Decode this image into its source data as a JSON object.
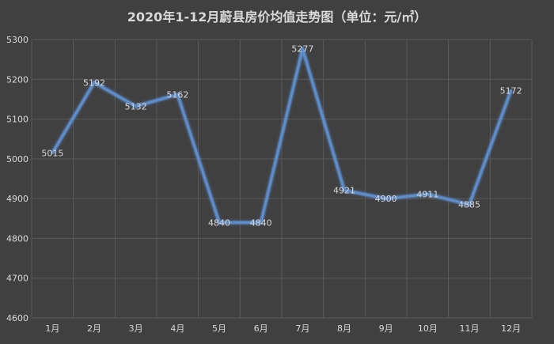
{
  "chart_data": {
    "type": "line",
    "title": "2020年1-12月蔚县房价均值走势图（单位：元/㎡）",
    "xlabel": "",
    "ylabel": "",
    "categories": [
      "1月",
      "2月",
      "3月",
      "4月",
      "5月",
      "6月",
      "7月",
      "8月",
      "9月",
      "10月",
      "11月",
      "12月"
    ],
    "series": [
      {
        "name": "",
        "values": [
          5015,
          5192,
          5132,
          5162,
          4840,
          4840,
          5277,
          4921,
          4900,
          4911,
          4885,
          5172
        ]
      }
    ],
    "ylim": [
      4600,
      5300
    ],
    "yticks": [
      4600,
      4700,
      4800,
      4900,
      5000,
      5100,
      5200,
      5300
    ],
    "grid": true,
    "legend": "none",
    "colors": {
      "background": "#404040",
      "line": "#5b8fd0",
      "glow": "#7fb0ff",
      "grid": "#5a5a5a",
      "text": "#d9d9d9"
    }
  }
}
